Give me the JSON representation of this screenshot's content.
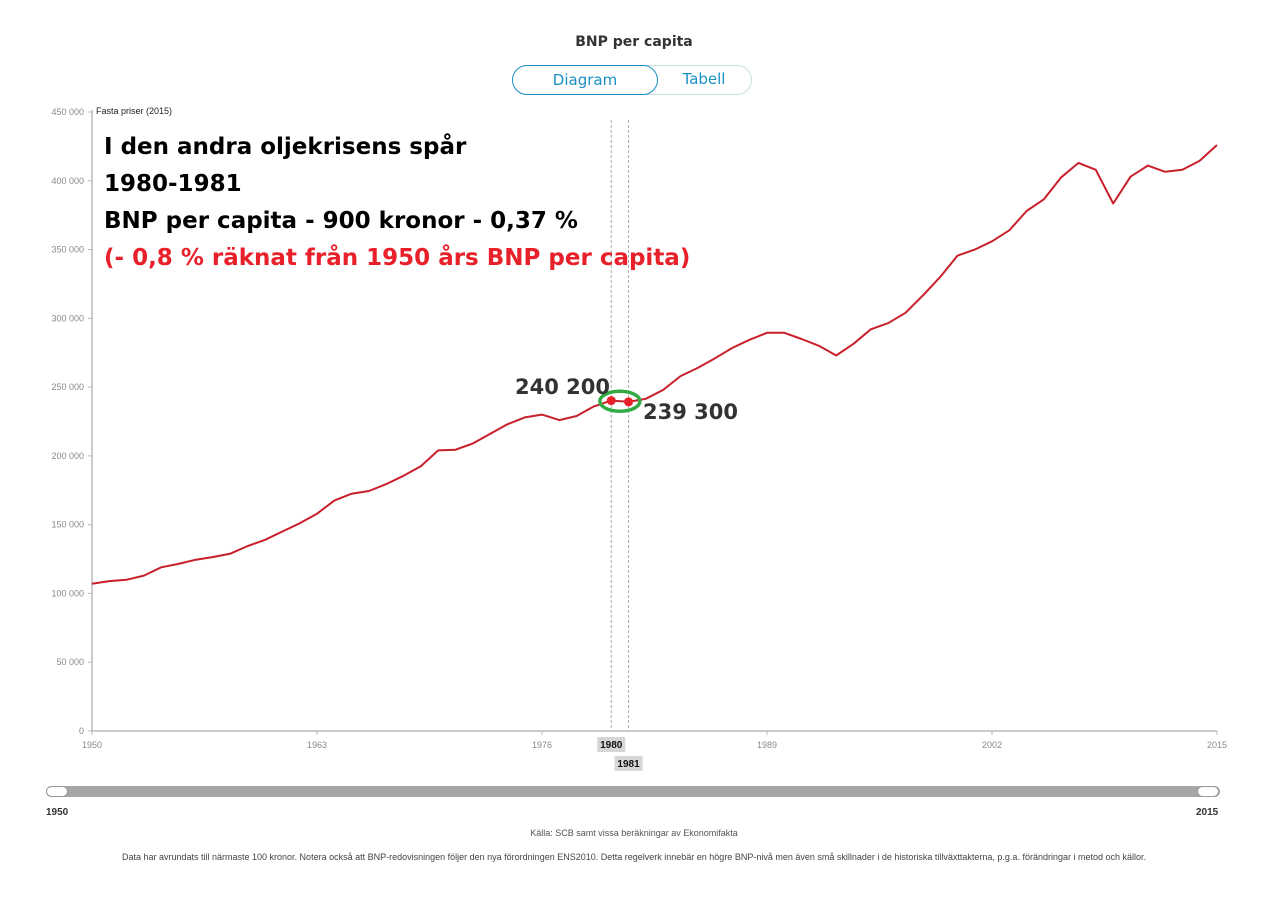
{
  "header": {
    "title": "BNP per capita"
  },
  "tabs": [
    {
      "label": "Diagram",
      "active": true
    },
    {
      "label": "Tabell",
      "active": false
    }
  ],
  "annotation": {
    "line1": "I den andra oljekrisens spår",
    "line2": "1980-1981",
    "line3": "BNP per capita - 900 kronor - 0,37 %",
    "line4": "(- 0,8 % räknat från 1950 års BNP per capita)",
    "label_1980": "240 200",
    "label_1981": "239 300",
    "highlight_color": "#33aa44",
    "accent_color": "#e8202a"
  },
  "chart_data": {
    "type": "line",
    "ylabel": "Fasta priser (2015)",
    "ylim": [
      0,
      450000
    ],
    "y_ticks": [
      0,
      50000,
      100000,
      150000,
      200000,
      250000,
      300000,
      350000,
      400000,
      450000
    ],
    "y_tick_labels": [
      "0",
      "50 000",
      "100 000",
      "150 000",
      "200 000",
      "250 000",
      "300 000",
      "350 000",
      "400 000",
      "450 000"
    ],
    "xlim": [
      1950,
      2015
    ],
    "x_ticks": [
      1950,
      1963,
      1976,
      1989,
      2002,
      2015
    ],
    "x_tick_labels": [
      "1950",
      "1963",
      "1976",
      "1989",
      "2002",
      "2015"
    ],
    "highlight_years": [
      1980,
      1981
    ],
    "highlight_year_labels": [
      "1980",
      "1981"
    ],
    "grid": false,
    "series": [
      {
        "color": "#c8202b",
        "x": [
          1950,
          1951,
          1952,
          1953,
          1954,
          1955,
          1956,
          1957,
          1958,
          1959,
          1960,
          1961,
          1962,
          1963,
          1964,
          1965,
          1966,
          1967,
          1968,
          1969,
          1970,
          1971,
          1972,
          1973,
          1974,
          1975,
          1976,
          1977,
          1978,
          1979,
          1980,
          1981,
          1982,
          1983,
          1984,
          1985,
          1986,
          1987,
          1988,
          1989,
          1990,
          1991,
          1992,
          1993,
          1994,
          1995,
          1996,
          1997,
          1998,
          1999,
          2000,
          2001,
          2002,
          2003,
          2004,
          2005,
          2006,
          2007,
          2008,
          2009,
          2010,
          2011,
          2012,
          2013,
          2014,
          2015
        ],
        "values": [
          107000,
          109000,
          110000,
          113000,
          119000,
          121500,
          124500,
          126500,
          129000,
          134500,
          139000,
          145000,
          151000,
          158000,
          167500,
          172500,
          174500,
          179500,
          185500,
          192500,
          204000,
          204500,
          209000,
          216000,
          223000,
          228000,
          230000,
          226000,
          229000,
          236000,
          240200,
          239300,
          241500,
          248000,
          258000,
          264000,
          271000,
          278500,
          284500,
          289500,
          289500,
          285000,
          280000,
          273000,
          281500,
          292000,
          296500,
          304000,
          316500,
          330000,
          345500,
          350000,
          356000,
          364000,
          378000,
          386500,
          402500,
          413000,
          408000,
          383500,
          403000,
          411000,
          406500,
          408000,
          414500,
          426000
        ]
      }
    ],
    "source": "Källa: SCB samt vissa beräkningar av Ekonomifakta",
    "note": "Data har avrundats till närmaste 100 kronor. Notera också att BNP-redovisningen följer den nya förordningen ENS2010. Detta regelverk innebär en högre BNP-nivå men även små skillnader i de historiska tillväxttakterna, p.g.a. förändringar i metod och källor."
  },
  "slider": {
    "start_label": "1950",
    "end_label": "2015",
    "start": 1950,
    "end": 2015
  }
}
